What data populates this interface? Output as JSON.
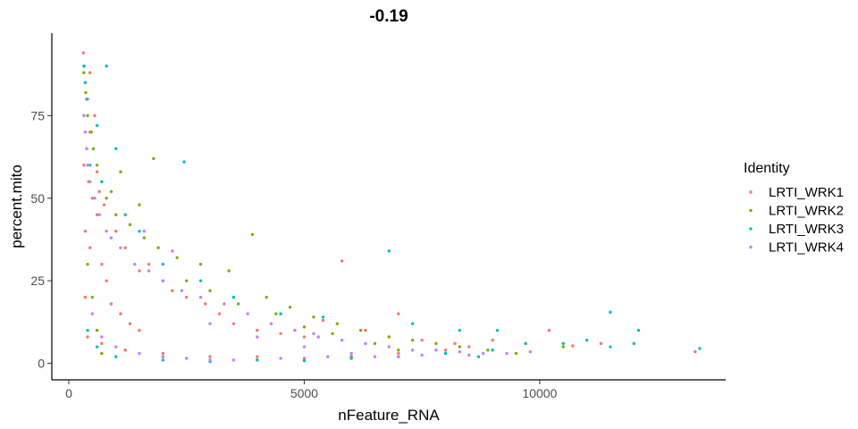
{
  "chart_data": {
    "type": "scatter",
    "title": "-0.19",
    "xlabel": "nFeature_RNA",
    "ylabel": "percent.mito",
    "xlim": [
      -360,
      13950
    ],
    "ylim": [
      -5,
      100
    ],
    "xticks": [
      0,
      5000,
      10000
    ],
    "xtick_labels": [
      "0",
      "5000",
      "10000"
    ],
    "yticks": [
      0,
      25,
      50,
      75
    ],
    "ytick_labels": [
      "0",
      "25",
      "50",
      "75"
    ],
    "grid": false,
    "legend": {
      "title": "Identity",
      "placement": "right"
    },
    "series": [
      {
        "name": "LRTI_WRK1",
        "color": "#F8766D",
        "points": [
          [
            310,
            94
          ],
          [
            330,
            90
          ],
          [
            350,
            85
          ],
          [
            400,
            80
          ],
          [
            450,
            70
          ],
          [
            380,
            65
          ],
          [
            320,
            60
          ],
          [
            420,
            55
          ],
          [
            500,
            50
          ],
          [
            600,
            45
          ],
          [
            350,
            40
          ],
          [
            450,
            35
          ],
          [
            700,
            30
          ],
          [
            800,
            25
          ],
          [
            350,
            20
          ],
          [
            900,
            18
          ],
          [
            1100,
            15
          ],
          [
            1300,
            12
          ],
          [
            1500,
            10
          ],
          [
            400,
            8
          ],
          [
            700,
            6
          ],
          [
            1200,
            4
          ],
          [
            2000,
            3
          ],
          [
            3000,
            2
          ],
          [
            4000,
            2
          ],
          [
            5000,
            1.5
          ],
          [
            6000,
            2
          ],
          [
            7000,
            3
          ],
          [
            8000,
            4
          ],
          [
            8500,
            5
          ],
          [
            600,
            58
          ],
          [
            650,
            52
          ],
          [
            750,
            48
          ],
          [
            1000,
            40
          ],
          [
            1200,
            35
          ],
          [
            1500,
            28
          ],
          [
            1700,
            30
          ],
          [
            2000,
            25
          ],
          [
            2200,
            22
          ],
          [
            2500,
            20
          ],
          [
            2900,
            18
          ],
          [
            3200,
            15
          ],
          [
            3500,
            12
          ],
          [
            4000,
            10
          ],
          [
            4500,
            9
          ],
          [
            5000,
            8
          ],
          [
            5800,
            31
          ],
          [
            5400,
            13
          ],
          [
            6300,
            10
          ],
          [
            7000,
            15
          ],
          [
            7500,
            7
          ],
          [
            8200,
            6
          ],
          [
            9000,
            7
          ],
          [
            9700,
            6
          ],
          [
            10200,
            10
          ],
          [
            10700,
            5.3
          ],
          [
            11300,
            6
          ],
          [
            13300,
            3.5
          ],
          [
            550,
            75
          ],
          [
            450,
            88
          ]
        ]
      },
      {
        "name": "LRTI_WRK2",
        "color": "#7CAE00",
        "points": [
          [
            320,
            88
          ],
          [
            360,
            82
          ],
          [
            400,
            75
          ],
          [
            480,
            70
          ],
          [
            520,
            65
          ],
          [
            600,
            60
          ],
          [
            700,
            55
          ],
          [
            800,
            50
          ],
          [
            1000,
            45
          ],
          [
            1300,
            42
          ],
          [
            1600,
            38
          ],
          [
            1900,
            35
          ],
          [
            2300,
            32
          ],
          [
            2800,
            30
          ],
          [
            3400,
            28
          ],
          [
            3900,
            39
          ],
          [
            4200,
            20
          ],
          [
            4700,
            17
          ],
          [
            5200,
            14
          ],
          [
            5700,
            12
          ],
          [
            6200,
            10
          ],
          [
            6800,
            8
          ],
          [
            7300,
            7
          ],
          [
            7800,
            6
          ],
          [
            8300,
            5
          ],
          [
            8900,
            4
          ],
          [
            9500,
            3
          ],
          [
            10500,
            5
          ],
          [
            1800,
            62
          ],
          [
            1500,
            48
          ],
          [
            1100,
            58
          ],
          [
            900,
            52
          ],
          [
            2500,
            25
          ],
          [
            3000,
            22
          ],
          [
            3600,
            18
          ],
          [
            4400,
            15
          ],
          [
            5000,
            11
          ],
          [
            5600,
            9
          ],
          [
            6500,
            6
          ],
          [
            7000,
            4
          ],
          [
            400,
            30
          ],
          [
            500,
            20
          ],
          [
            600,
            10
          ],
          [
            700,
            3
          ],
          [
            2000,
            2
          ],
          [
            4000,
            1
          ],
          [
            6000,
            2
          ],
          [
            8000,
            3
          ]
        ]
      },
      {
        "name": "LRTI_WRK3",
        "color": "#00BFC4",
        "points": [
          [
            320,
            90
          ],
          [
            350,
            85
          ],
          [
            800,
            90
          ],
          [
            380,
            80
          ],
          [
            600,
            72
          ],
          [
            1000,
            65
          ],
          [
            2450,
            61
          ],
          [
            450,
            60
          ],
          [
            700,
            55
          ],
          [
            1200,
            45
          ],
          [
            1500,
            40
          ],
          [
            2000,
            30
          ],
          [
            2800,
            25
          ],
          [
            3500,
            20
          ],
          [
            4500,
            15
          ],
          [
            5400,
            14
          ],
          [
            6800,
            34
          ],
          [
            7300,
            12
          ],
          [
            8300,
            10
          ],
          [
            9100,
            10
          ],
          [
            9700,
            6
          ],
          [
            10500,
            6
          ],
          [
            11000,
            7
          ],
          [
            11500,
            5
          ],
          [
            12000,
            6
          ],
          [
            12100,
            10
          ],
          [
            13400,
            4.5
          ],
          [
            11500,
            15.5
          ],
          [
            400,
            10
          ],
          [
            600,
            5
          ],
          [
            1000,
            2
          ],
          [
            2000,
            1
          ],
          [
            3000,
            0.5
          ],
          [
            4000,
            1
          ],
          [
            5000,
            0.8
          ],
          [
            6000,
            1.5
          ],
          [
            7000,
            2
          ],
          [
            8000,
            3
          ],
          [
            9000,
            4
          ],
          [
            8700,
            2
          ]
        ]
      },
      {
        "name": "LRTI_WRK4",
        "color": "#C77CFF",
        "points": [
          [
            320,
            75
          ],
          [
            350,
            70
          ],
          [
            380,
            65
          ],
          [
            400,
            60
          ],
          [
            450,
            55
          ],
          [
            550,
            50
          ],
          [
            650,
            45
          ],
          [
            800,
            40
          ],
          [
            900,
            38
          ],
          [
            1100,
            35
          ],
          [
            1400,
            30
          ],
          [
            1700,
            28
          ],
          [
            2000,
            25
          ],
          [
            2400,
            22
          ],
          [
            2800,
            20
          ],
          [
            3300,
            18
          ],
          [
            3800,
            15
          ],
          [
            4300,
            12
          ],
          [
            4800,
            10
          ],
          [
            5300,
            8
          ],
          [
            5800,
            7
          ],
          [
            6300,
            6
          ],
          [
            6800,
            5
          ],
          [
            7300,
            4
          ],
          [
            7800,
            4
          ],
          [
            8300,
            3.5
          ],
          [
            8800,
            3
          ],
          [
            9300,
            3
          ],
          [
            9800,
            3.5
          ],
          [
            2200,
            34
          ],
          [
            1600,
            40
          ],
          [
            3000,
            12
          ],
          [
            4000,
            8
          ],
          [
            5000,
            5
          ],
          [
            6000,
            3
          ],
          [
            7000,
            2
          ],
          [
            500,
            15
          ],
          [
            700,
            8
          ],
          [
            1000,
            5
          ],
          [
            1500,
            3
          ],
          [
            2000,
            2
          ],
          [
            2500,
            1.5
          ],
          [
            3000,
            1
          ],
          [
            3500,
            1
          ],
          [
            4500,
            1.5
          ],
          [
            5500,
            2
          ],
          [
            6500,
            2
          ],
          [
            7500,
            2.5
          ],
          [
            8500,
            2.5
          ],
          [
            5200,
            9
          ]
        ]
      }
    ]
  }
}
